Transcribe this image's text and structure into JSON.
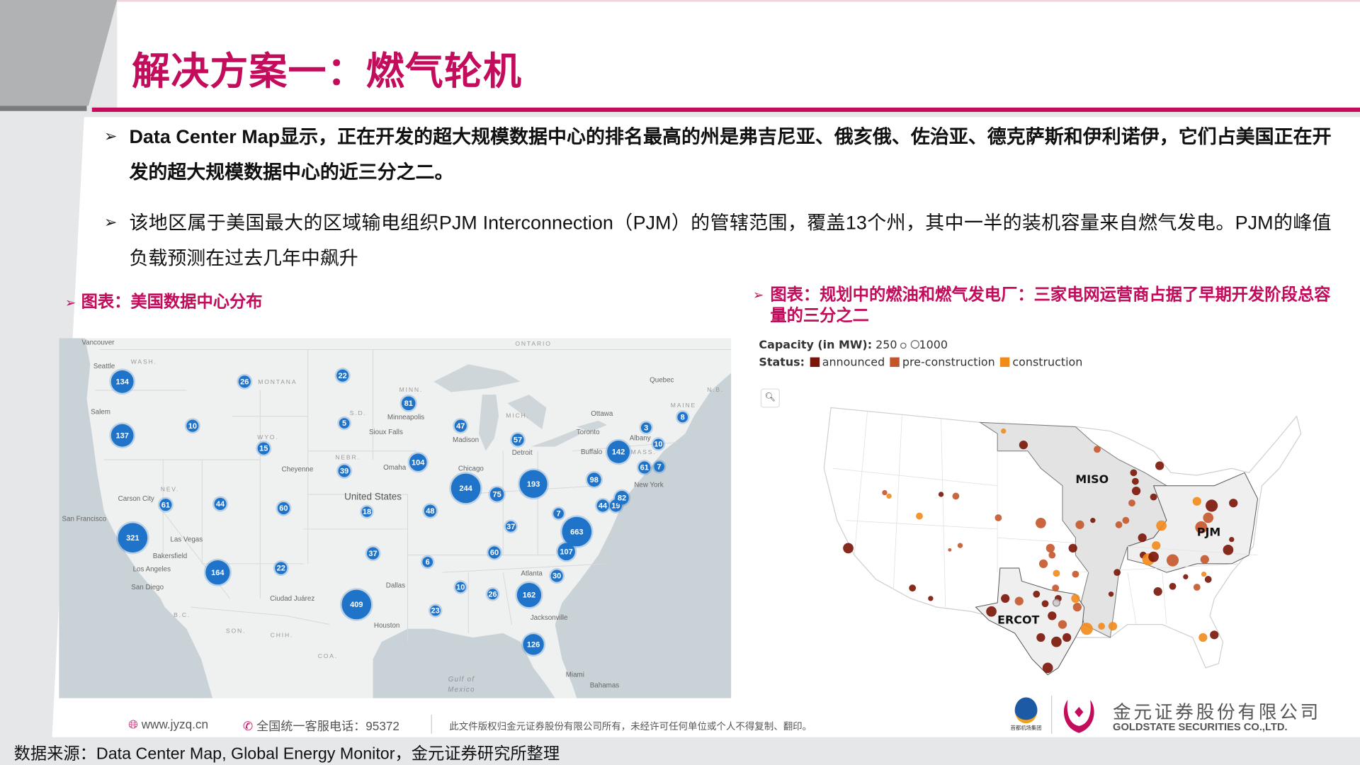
{
  "header": {
    "title": "解决方案一：燃气轮机"
  },
  "bullets": [
    {
      "text": "Data Center Map显示，正在开发的超大规模数据中心的排名最高的州是弗吉尼亚、俄亥俄、佐治亚、德克萨斯和伊利诺伊，它们占美国正在开发的超大规模数据中心的近三分之二。"
    },
    {
      "text": "该地区属于美国最大的区域输电组织PJM Interconnection（PJM）的管辖范围，覆盖13个州，其中一半的装机容量来自燃气发电。PJM的峰值负载预测在过去几年中飙升"
    }
  ],
  "bullet_icon": "arrow-right-icon",
  "left_chart": {
    "caption": "图表：美国数据中心分布",
    "cluster_values": [
      134,
      26,
      22,
      81,
      10,
      137,
      15,
      5,
      47,
      57,
      3,
      8,
      10,
      142,
      61,
      7,
      104,
      39,
      244,
      75,
      193,
      98,
      61,
      44,
      60,
      18,
      48,
      7,
      44,
      19,
      82,
      663,
      37,
      321,
      107,
      37,
      60,
      6,
      22,
      164,
      30,
      10,
      26,
      162,
      409,
      23,
      126
    ],
    "labels": [
      "Vancouver",
      "Seattle",
      "WASH.",
      "Salem",
      "MONTANA",
      "ONTARIO",
      "MINN.",
      "Minneapolis",
      "S.D.",
      "Sioux Falls",
      "Omaha",
      "NEBR.",
      "WYO.",
      "Cheyenne",
      "NEV.",
      "Carson City",
      "San Francisco",
      "Las Vegas",
      "Bakersfield",
      "Los Angeles",
      "San Diego",
      "United States",
      "Ciudad Juárez",
      "Dallas",
      "Houston",
      "Atlanta",
      "Jacksonville",
      "Miami",
      "Bahamas",
      "Gulf of",
      "Mexico",
      "Chicago",
      "Madison",
      "Detroit",
      "MICH.",
      "Toronto",
      "Buffalo",
      "Ottawa",
      "Quebec",
      "Albany",
      "New York",
      "MAINE",
      "N.B.",
      "B.C.",
      "SON.",
      "CHIH.",
      "COA.",
      "MASS."
    ],
    "bubble_color": "#1f74c9"
  },
  "right_chart": {
    "caption": "图表：规划中的燃油和燃气发电厂：三家电网运营商占据了早期开发阶段总容量的三分之二",
    "capacity_label": "Capacity (in MW):",
    "capacity_min": "250",
    "capacity_max": "1000",
    "status_label": "Status:",
    "statuses": [
      {
        "name": "announced",
        "color": "#7a1406"
      },
      {
        "name": "pre-construction",
        "color": "#c4552b"
      },
      {
        "name": "construction",
        "color": "#f28a1a"
      }
    ],
    "regions": [
      "MISO",
      "PJM",
      "ERCOT"
    ],
    "zoom_icon": "search-icon"
  },
  "footer": {
    "website": "www.jyzq.cn",
    "hotline": "全国统一客服电话：95372",
    "copyright": "此文件版权归金元证券股份有限公司所有，未经许可任何单位或个人不得复制、翻印。",
    "partner_logo_text": "首都机场集团",
    "company_cn": "金元证券股份有限公司",
    "company_en": "GOLDSTATE SECURITIES CO.,LTD.",
    "source": "数据来源：Data Center Map, Global Energy Monitor，金元证券研究所整理"
  },
  "colors": {
    "accent": "#c30d5c",
    "background": "#e6e7e9"
  }
}
